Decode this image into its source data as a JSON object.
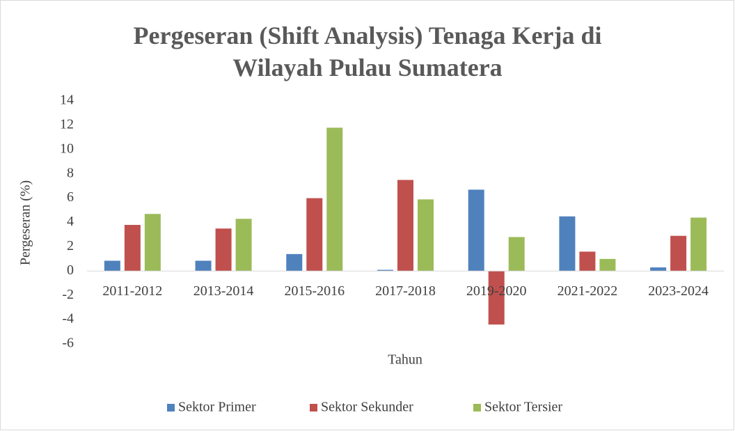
{
  "chart_data": {
    "type": "bar",
    "title": "Pergeseran (Shift Analysis) Tenaga Kerja di Wilayah Pulau Sumatera",
    "x_label": "Tahun",
    "y_label": "Pergeseran (%)",
    "categories": [
      "2011-2012",
      "2013-2014",
      "2015-2016",
      "2017-2018",
      "2019-2020",
      "2021-2022",
      "2023-2024"
    ],
    "series": [
      {
        "name": "Sektor Primer",
        "color": "#4f81bd",
        "values": [
          0.85,
          0.85,
          1.4,
          0.1,
          6.7,
          4.5,
          0.3
        ]
      },
      {
        "name": "Sektor Sekunder",
        "color": "#c0504d",
        "values": [
          3.8,
          3.5,
          6.0,
          7.5,
          -4.4,
          1.6,
          2.9
        ]
      },
      {
        "name": "Sektor Tersier",
        "color": "#9bbb59",
        "values": [
          4.7,
          4.3,
          11.8,
          5.9,
          2.8,
          1.0,
          4.4
        ]
      }
    ],
    "ylim": [
      -6,
      14
    ],
    "yticks": [
      -6,
      -4,
      -2,
      0,
      2,
      4,
      6,
      8,
      10,
      12,
      14
    ],
    "grid": false,
    "legend": "bottom"
  }
}
